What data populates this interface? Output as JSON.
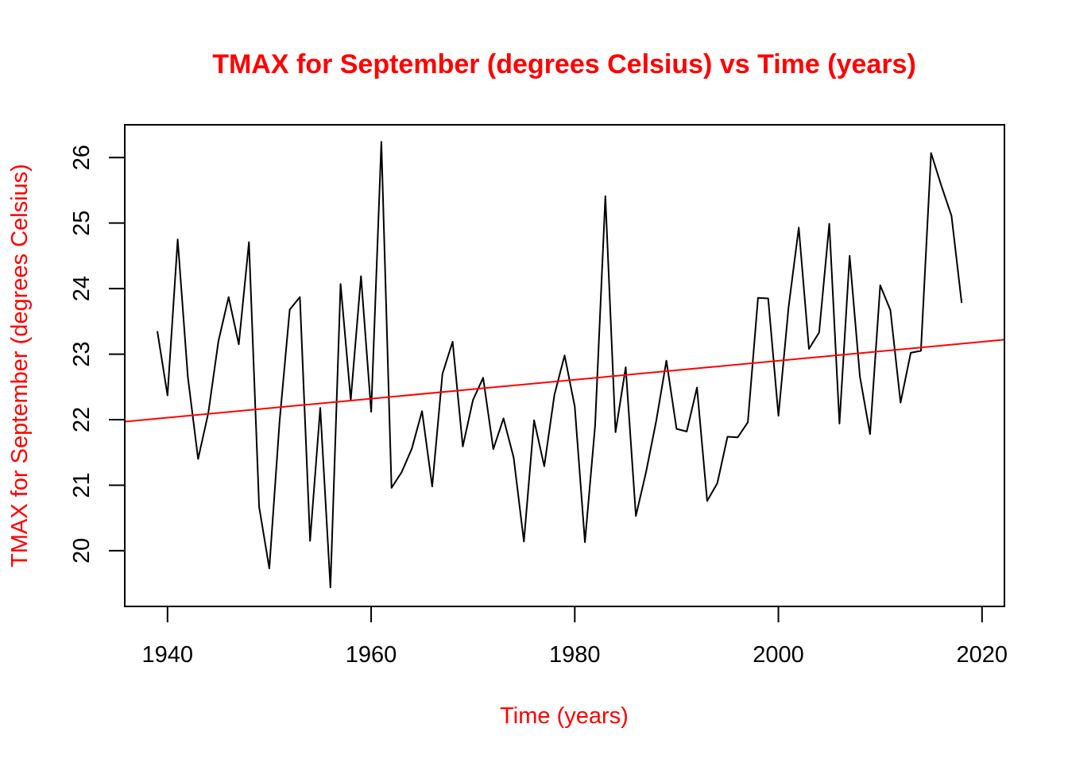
{
  "chart_data": {
    "type": "line",
    "title": "TMAX for September (degrees Celsius) vs Time (years)",
    "xlabel": "Time (years)",
    "ylabel": "TMAX for September (degrees Celsius)",
    "xlim": [
      1935.8,
      2022.2
    ],
    "ylim": [
      19.15,
      26.5
    ],
    "x_ticks": [
      1940,
      1960,
      1980,
      2000,
      2020
    ],
    "y_ticks": [
      20,
      21,
      22,
      23,
      24,
      25,
      26
    ],
    "grid": false,
    "legend": "none",
    "colors": {
      "title": "#ff0000",
      "axis_labels": "#ff0000",
      "series": "#000000",
      "trend": "#ff0000",
      "axes": "#000000"
    },
    "series": [
      {
        "x": [
          1939,
          1940,
          1941,
          1942,
          1943,
          1944,
          1945,
          1946,
          1947,
          1948,
          1949,
          1950,
          1951,
          1952,
          1953,
          1954,
          1955,
          1956,
          1957,
          1958,
          1959,
          1960,
          1961,
          1962,
          1963,
          1964,
          1965,
          1966,
          1967,
          1968,
          1969,
          1970,
          1971,
          1972,
          1973,
          1974,
          1975,
          1976,
          1977,
          1978,
          1979,
          1980,
          1981,
          1982,
          1983,
          1984,
          1985,
          1986,
          1987,
          1988,
          1989,
          1990,
          1991,
          1992,
          1993,
          1994,
          1995,
          1996,
          1997,
          1998,
          1999,
          2000,
          2001,
          2002,
          2003,
          2004,
          2005,
          2006,
          2007,
          2008,
          2009,
          2010,
          2011,
          2012,
          2013,
          2014,
          2015,
          2016,
          2017,
          2018
        ],
        "values": [
          23.35,
          22.37,
          24.75,
          22.65,
          21.4,
          22.1,
          23.2,
          23.87,
          23.15,
          24.71,
          20.67,
          19.73,
          21.97,
          23.68,
          23.87,
          20.15,
          22.18,
          19.44,
          24.07,
          22.3,
          24.19,
          22.12,
          26.24,
          20.96,
          21.2,
          21.56,
          22.13,
          20.98,
          22.7,
          23.19,
          21.59,
          22.3,
          22.64,
          21.55,
          22.02,
          21.42,
          20.14,
          21.99,
          21.29,
          22.38,
          22.98,
          22.2,
          20.13,
          21.91,
          25.41,
          21.81,
          22.8,
          20.53,
          21.2,
          21.98,
          22.9,
          21.86,
          21.82,
          22.49,
          20.76,
          21.03,
          21.74,
          21.73,
          21.96,
          23.86,
          23.85,
          22.06,
          23.72,
          24.93,
          23.08,
          23.33,
          24.99,
          21.94,
          24.5,
          22.66,
          21.78,
          24.05,
          23.67,
          22.26,
          23.02,
          23.05,
          26.07,
          25.57,
          25.11,
          23.78
        ]
      }
    ],
    "trend_line": {
      "x": [
        1935.8,
        2022.2
      ],
      "values": [
        21.97,
        23.22
      ]
    }
  }
}
